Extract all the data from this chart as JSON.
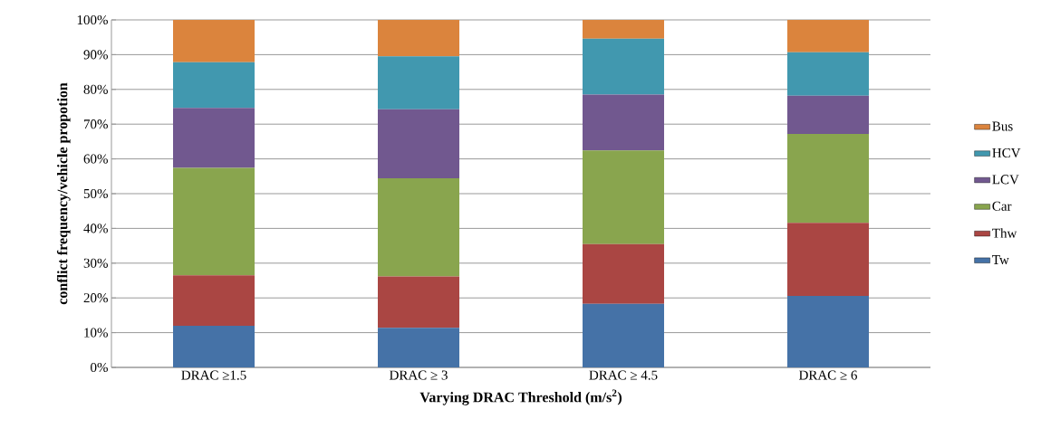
{
  "chart_data": {
    "type": "bar",
    "stacked": true,
    "xlabel": "Varying DRAC Threshold  (m/s$^{2}$)",
    "ylabel": "conflict frequency/vehicle propotion",
    "categories": [
      "DRAC ≥1.5",
      "DRAC  ≥ 3",
      "DRAC  ≥ 4.5",
      "DRAC  ≥ 6"
    ],
    "series": [
      {
        "name": "Tw",
        "color": "#4572a7",
        "values": [
          12.0,
          11.4,
          18.3,
          20.6
        ]
      },
      {
        "name": "Thw",
        "color": "#aa4643",
        "values": [
          14.5,
          14.8,
          17.2,
          21.0
        ]
      },
      {
        "name": "Car",
        "color": "#89a54e",
        "values": [
          30.9,
          28.2,
          26.9,
          25.6
        ]
      },
      {
        "name": "LCV",
        "color": "#71588f",
        "values": [
          17.3,
          19.9,
          16.1,
          11.0
        ]
      },
      {
        "name": "HCV",
        "color": "#4198af",
        "values": [
          13.1,
          15.2,
          16.1,
          12.5
        ]
      },
      {
        "name": "Bus",
        "color": "#db843d",
        "values": [
          12.2,
          10.5,
          5.4,
          9.3
        ]
      }
    ],
    "ylim": [
      0,
      100
    ],
    "yticks": [
      {
        "value": 0,
        "label": "0%"
      },
      {
        "value": 10,
        "label": "10%"
      },
      {
        "value": 20,
        "label": "20%"
      },
      {
        "value": 30,
        "label": "30%"
      },
      {
        "value": 40,
        "label": "40%"
      },
      {
        "value": 50,
        "label": "50%"
      },
      {
        "value": 60,
        "label": "60%"
      },
      {
        "value": 70,
        "label": "70%"
      },
      {
        "value": 80,
        "label": "80%"
      },
      {
        "value": 90,
        "label": "90%"
      },
      {
        "value": 100,
        "label": "100%"
      }
    ],
    "grid": "y",
    "legend": "right"
  }
}
